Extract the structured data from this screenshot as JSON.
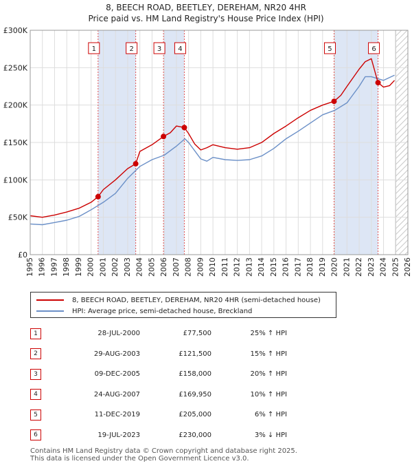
{
  "title_line1": "8, BEECH ROAD, BEETLEY, DEREHAM, NR20 4HR",
  "title_line2": "Price paid vs. HM Land Registry's House Price Index (HPI)",
  "colors": {
    "property": "#cc0000",
    "hpi": "#6a8fc7",
    "band": "#dde6f5",
    "marker_line": "#e05050",
    "grid": "#dddddd"
  },
  "legend": {
    "property": "8, BEECH ROAD, BEETLEY, DEREHAM, NR20 4HR (semi-detached house)",
    "hpi": "HPI: Average price, semi-detached house, Breckland"
  },
  "transactions": [
    {
      "num": "1",
      "date": "28-JUL-2000",
      "price": "£77,500",
      "hpi": "25% ↑ HPI"
    },
    {
      "num": "2",
      "date": "29-AUG-2003",
      "price": "£121,500",
      "hpi": "15% ↑ HPI"
    },
    {
      "num": "3",
      "date": "09-DEC-2005",
      "price": "£158,000",
      "hpi": "20% ↑ HPI"
    },
    {
      "num": "4",
      "date": "24-AUG-2007",
      "price": "£169,950",
      "hpi": "10% ↑ HPI"
    },
    {
      "num": "5",
      "date": "11-DEC-2019",
      "price": "£205,000",
      "hpi": "6% ↑ HPI"
    },
    {
      "num": "6",
      "date": "19-JUL-2023",
      "price": "£230,000",
      "hpi": "3% ↓ HPI"
    }
  ],
  "footer_line1": "Contains HM Land Registry data © Crown copyright and database right 2025.",
  "footer_line2": "This data is licensed under the Open Government Licence v3.0.",
  "chart_data": {
    "type": "line",
    "title": "8, BEECH ROAD, BEETLEY, DEREHAM, NR20 4HR",
    "subtitle": "Price paid vs. HM Land Registry's House Price Index (HPI)",
    "xlabel": "",
    "ylabel": "",
    "xlim": [
      1995,
      2026
    ],
    "ylim": [
      0,
      300000
    ],
    "yticks": [
      0,
      50000,
      100000,
      150000,
      200000,
      250000,
      300000
    ],
    "ytick_labels": [
      "£0",
      "£50K",
      "£100K",
      "£150K",
      "£200K",
      "£250K",
      "£300K"
    ],
    "xticks": [
      1995,
      1996,
      1997,
      1998,
      1999,
      2000,
      2001,
      2002,
      2003,
      2004,
      2005,
      2006,
      2007,
      2008,
      2009,
      2010,
      2011,
      2012,
      2013,
      2014,
      2015,
      2016,
      2017,
      2018,
      2019,
      2020,
      2021,
      2022,
      2023,
      2024,
      2025,
      2026
    ],
    "grid": true,
    "forecast_start": 2025.0,
    "shaded_periods": [
      [
        2000.57,
        2003.66
      ],
      [
        2005.94,
        2007.65
      ],
      [
        2019.94,
        2023.55
      ]
    ],
    "sales": [
      {
        "label": "1",
        "x": 2000.57,
        "y": 77500
      },
      {
        "label": "2",
        "x": 2003.66,
        "y": 121500
      },
      {
        "label": "3",
        "x": 2005.94,
        "y": 158000
      },
      {
        "label": "4",
        "x": 2007.65,
        "y": 169950
      },
      {
        "label": "5",
        "x": 2019.94,
        "y": 205000
      },
      {
        "label": "6",
        "x": 2023.55,
        "y": 230000
      }
    ],
    "series": [
      {
        "name": "8, BEECH ROAD, BEETLEY, DEREHAM, NR20 4HR (semi-detached house)",
        "x": [
          1995,
          1996,
          1997,
          1998,
          1999,
          2000,
          2000.57,
          2001,
          2002,
          2003,
          2003.66,
          2004,
          2005,
          2005.94,
          2006.5,
          2007,
          2007.65,
          2008,
          2008.5,
          2009,
          2009.5,
          2010,
          2011,
          2012,
          2013,
          2014,
          2015,
          2016,
          2017,
          2018,
          2019,
          2019.94,
          2020.5,
          2021,
          2022,
          2022.5,
          2023,
          2023.55,
          2024,
          2024.5,
          2024.9
        ],
        "y": [
          52000,
          50000,
          53000,
          57000,
          62000,
          70000,
          77500,
          87000,
          100000,
          115000,
          121500,
          138000,
          147000,
          158000,
          163000,
          172000,
          169950,
          162000,
          148000,
          140000,
          143000,
          147000,
          143000,
          141000,
          143000,
          150000,
          162000,
          172000,
          183000,
          193000,
          200000,
          205000,
          213000,
          225000,
          248000,
          258000,
          262000,
          230000,
          224000,
          226000,
          233000
        ]
      },
      {
        "name": "HPI: Average price, semi-detached house, Breckland",
        "x": [
          1995,
          1996,
          1997,
          1998,
          1999,
          2000,
          2001,
          2002,
          2003,
          2004,
          2005,
          2006,
          2007,
          2007.7,
          2008,
          2009,
          2009.5,
          2010,
          2011,
          2012,
          2013,
          2014,
          2015,
          2016,
          2017,
          2018,
          2019,
          2020,
          2021,
          2022,
          2022.5,
          2023,
          2024,
          2024.9
        ],
        "y": [
          41000,
          40000,
          43000,
          46000,
          51000,
          60000,
          70000,
          82000,
          102000,
          118000,
          127000,
          133000,
          145000,
          155000,
          150000,
          128000,
          125000,
          130000,
          127000,
          126000,
          127000,
          132000,
          142000,
          155000,
          165000,
          176000,
          187000,
          193000,
          203000,
          225000,
          238000,
          238000,
          233000,
          240000
        ]
      }
    ]
  }
}
